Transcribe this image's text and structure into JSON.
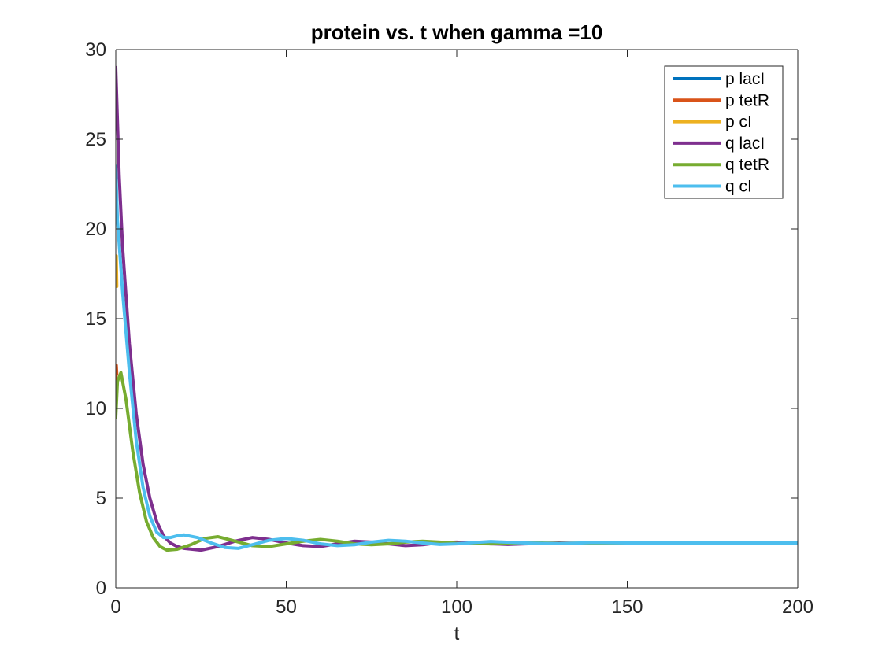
{
  "chart_data": {
    "type": "line",
    "title": "protein vs. t when gamma =10",
    "xlabel": "t",
    "ylabel": "",
    "xlim": [
      0,
      200
    ],
    "ylim": [
      0,
      30
    ],
    "xticks": [
      0,
      50,
      100,
      150,
      200
    ],
    "yticks": [
      0,
      5,
      10,
      15,
      20,
      25,
      30
    ],
    "grid": false,
    "legend_position": "top-right",
    "series": [
      {
        "name": "p lacI",
        "color": "#0072BD",
        "points": [
          [
            0,
            23.3
          ],
          [
            0.25,
            20.8
          ]
        ]
      },
      {
        "name": "p tetR",
        "color": "#D95319",
        "points": [
          [
            0,
            11.5
          ],
          [
            0.15,
            12.4
          ],
          [
            0.3,
            11.9
          ]
        ]
      },
      {
        "name": "p cI",
        "color": "#EDB120",
        "points": [
          [
            0,
            18.0
          ],
          [
            0.15,
            18.5
          ],
          [
            0.3,
            16.8
          ]
        ]
      },
      {
        "name": "q lacI",
        "color": "#7E2F8E",
        "points": [
          [
            0,
            29.0
          ],
          [
            1,
            23.0
          ],
          [
            2,
            19.0
          ],
          [
            4,
            13.6
          ],
          [
            6,
            9.7
          ],
          [
            8,
            6.9
          ],
          [
            10,
            5.0
          ],
          [
            12,
            3.7
          ],
          [
            14,
            2.9
          ],
          [
            16,
            2.5
          ],
          [
            18,
            2.3
          ],
          [
            20,
            2.2
          ],
          [
            25,
            2.1
          ],
          [
            30,
            2.3
          ],
          [
            35,
            2.6
          ],
          [
            40,
            2.8
          ],
          [
            45,
            2.7
          ],
          [
            50,
            2.5
          ],
          [
            55,
            2.35
          ],
          [
            60,
            2.3
          ],
          [
            65,
            2.45
          ],
          [
            70,
            2.6
          ],
          [
            75,
            2.55
          ],
          [
            80,
            2.45
          ],
          [
            85,
            2.35
          ],
          [
            90,
            2.4
          ],
          [
            95,
            2.52
          ],
          [
            100,
            2.55
          ],
          [
            105,
            2.5
          ],
          [
            110,
            2.45
          ],
          [
            115,
            2.42
          ],
          [
            120,
            2.45
          ],
          [
            130,
            2.5
          ],
          [
            140,
            2.46
          ],
          [
            150,
            2.48
          ],
          [
            160,
            2.5
          ],
          [
            170,
            2.48
          ],
          [
            180,
            2.49
          ],
          [
            190,
            2.5
          ],
          [
            200,
            2.5
          ]
        ]
      },
      {
        "name": "q tetR",
        "color": "#77AC30",
        "points": [
          [
            0,
            9.5
          ],
          [
            0.5,
            11.5
          ],
          [
            1.5,
            12.0
          ],
          [
            3,
            10.5
          ],
          [
            5,
            7.6
          ],
          [
            7,
            5.3
          ],
          [
            9,
            3.7
          ],
          [
            11,
            2.8
          ],
          [
            13,
            2.3
          ],
          [
            15,
            2.1
          ],
          [
            18,
            2.15
          ],
          [
            22,
            2.4
          ],
          [
            26,
            2.75
          ],
          [
            30,
            2.85
          ],
          [
            35,
            2.6
          ],
          [
            40,
            2.35
          ],
          [
            45,
            2.3
          ],
          [
            50,
            2.45
          ],
          [
            55,
            2.6
          ],
          [
            60,
            2.7
          ],
          [
            65,
            2.6
          ],
          [
            70,
            2.45
          ],
          [
            75,
            2.4
          ],
          [
            80,
            2.45
          ],
          [
            85,
            2.55
          ],
          [
            90,
            2.6
          ],
          [
            95,
            2.55
          ],
          [
            100,
            2.48
          ],
          [
            110,
            2.45
          ],
          [
            120,
            2.52
          ],
          [
            130,
            2.48
          ],
          [
            140,
            2.5
          ],
          [
            150,
            2.49
          ],
          [
            160,
            2.5
          ],
          [
            180,
            2.5
          ],
          [
            200,
            2.5
          ]
        ]
      },
      {
        "name": "q cI",
        "color": "#4DBEEE",
        "points": [
          [
            0,
            23.5
          ],
          [
            0.5,
            20.5
          ],
          [
            2,
            16.5
          ],
          [
            4,
            12.0
          ],
          [
            6,
            8.2
          ],
          [
            8,
            5.6
          ],
          [
            10,
            4.0
          ],
          [
            12,
            3.1
          ],
          [
            14,
            2.8
          ],
          [
            16,
            2.8
          ],
          [
            18,
            2.9
          ],
          [
            20,
            2.95
          ],
          [
            24,
            2.8
          ],
          [
            28,
            2.5
          ],
          [
            32,
            2.25
          ],
          [
            36,
            2.2
          ],
          [
            40,
            2.4
          ],
          [
            45,
            2.65
          ],
          [
            50,
            2.75
          ],
          [
            55,
            2.65
          ],
          [
            60,
            2.45
          ],
          [
            65,
            2.35
          ],
          [
            70,
            2.4
          ],
          [
            75,
            2.55
          ],
          [
            80,
            2.65
          ],
          [
            85,
            2.6
          ],
          [
            90,
            2.5
          ],
          [
            95,
            2.42
          ],
          [
            100,
            2.45
          ],
          [
            105,
            2.52
          ],
          [
            110,
            2.58
          ],
          [
            120,
            2.5
          ],
          [
            130,
            2.46
          ],
          [
            140,
            2.52
          ],
          [
            150,
            2.5
          ],
          [
            170,
            2.5
          ],
          [
            200,
            2.5
          ]
        ]
      }
    ]
  }
}
